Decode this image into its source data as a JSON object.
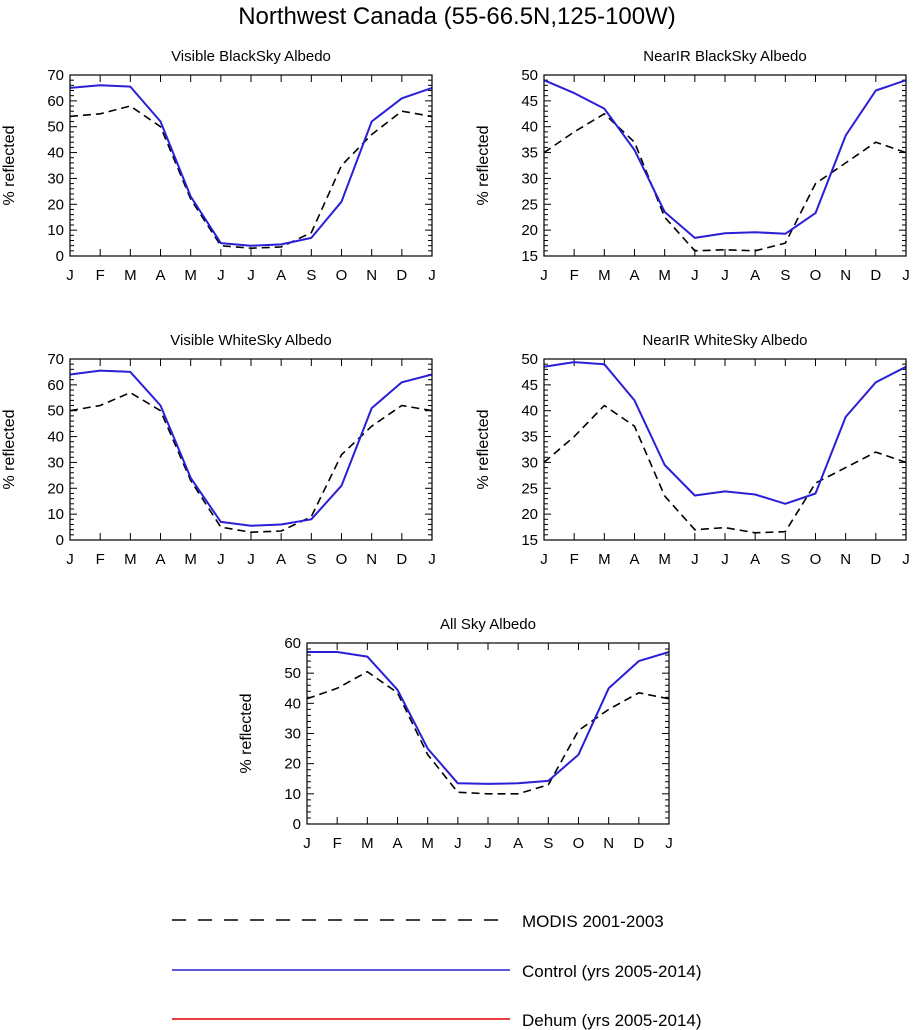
{
  "main_title": "Northwest Canada (55-66.5N,125-100W)",
  "colors": {
    "modis": "#000000",
    "control": "#2a1fd6",
    "dehum": "#e00000"
  },
  "legend": [
    {
      "key": "modis",
      "label": "MODIS 2001-2003",
      "style": "dashed"
    },
    {
      "key": "control",
      "label": "Control (yrs 2005-2014)",
      "style": "solid"
    },
    {
      "key": "dehum",
      "label": "Dehum (yrs 2005-2014)",
      "style": "solid"
    }
  ],
  "chart_data": [
    {
      "type": "line",
      "title": "Visible BlackSky Albedo",
      "ylabel": "% reflected",
      "ylim": [
        0,
        70
      ],
      "yticks": [
        0,
        10,
        20,
        30,
        40,
        50,
        60,
        70
      ],
      "categories": [
        "J",
        "F",
        "M",
        "A",
        "M",
        "J",
        "J",
        "A",
        "S",
        "O",
        "N",
        "D",
        "J"
      ],
      "series": [
        {
          "name": "MODIS 2001-2003",
          "key": "modis",
          "values": [
            54,
            55,
            58,
            50,
            22,
            4,
            3,
            3.5,
            9,
            35,
            47,
            56,
            54
          ]
        },
        {
          "name": "Control (yrs 2005-2014)",
          "key": "control",
          "values": [
            65,
            66,
            65.5,
            52,
            23,
            5,
            4,
            4.5,
            7,
            21,
            52,
            61,
            65
          ]
        }
      ]
    },
    {
      "type": "line",
      "title": "NearIR BlackSky Albedo",
      "ylabel": "% reflected",
      "ylim": [
        15,
        50
      ],
      "yticks": [
        15,
        20,
        25,
        30,
        35,
        40,
        45,
        50
      ],
      "categories": [
        "J",
        "F",
        "M",
        "A",
        "M",
        "J",
        "J",
        "A",
        "S",
        "O",
        "N",
        "D",
        "J"
      ],
      "series": [
        {
          "name": "MODIS 2001-2003",
          "key": "modis",
          "values": [
            35,
            39,
            42.5,
            37,
            22.5,
            16,
            16.2,
            16,
            17.5,
            29,
            33,
            37,
            35
          ]
        },
        {
          "name": "Control (yrs 2005-2014)",
          "key": "control",
          "values": [
            49,
            46.5,
            43.5,
            35.5,
            23.5,
            18.5,
            19.4,
            19.6,
            19.3,
            23.3,
            38.3,
            47,
            49
          ]
        }
      ]
    },
    {
      "type": "line",
      "title": "Visible WhiteSky Albedo",
      "ylabel": "% reflected",
      "ylim": [
        0,
        70
      ],
      "yticks": [
        0,
        10,
        20,
        30,
        40,
        50,
        60,
        70
      ],
      "categories": [
        "J",
        "F",
        "M",
        "A",
        "M",
        "J",
        "J",
        "A",
        "S",
        "O",
        "N",
        "D",
        "J"
      ],
      "series": [
        {
          "name": "MODIS 2001-2003",
          "key": "modis",
          "values": [
            50,
            52,
            57,
            50,
            23,
            5,
            3,
            3.5,
            9,
            33,
            44,
            52,
            50
          ]
        },
        {
          "name": "Control (yrs 2005-2014)",
          "key": "control",
          "values": [
            64,
            65.5,
            65,
            52,
            24,
            7,
            5.5,
            6,
            8,
            21,
            51,
            61,
            64
          ]
        }
      ]
    },
    {
      "type": "line",
      "title": "NearIR WhiteSky Albedo",
      "ylabel": "% reflected",
      "ylim": [
        15,
        50
      ],
      "yticks": [
        15,
        20,
        25,
        30,
        35,
        40,
        45,
        50
      ],
      "categories": [
        "J",
        "F",
        "M",
        "A",
        "M",
        "J",
        "J",
        "A",
        "S",
        "O",
        "N",
        "D",
        "J"
      ],
      "series": [
        {
          "name": "MODIS 2001-2003",
          "key": "modis",
          "values": [
            30,
            35,
            41,
            37,
            23.5,
            17,
            17.4,
            16.4,
            16.6,
            26,
            29,
            32,
            30
          ]
        },
        {
          "name": "Control (yrs 2005-2014)",
          "key": "control",
          "values": [
            48.5,
            49.4,
            49,
            42,
            29.5,
            23.6,
            24.4,
            23.8,
            22,
            24,
            38.8,
            45.5,
            48.5
          ]
        }
      ]
    },
    {
      "type": "line",
      "title": "All Sky Albedo",
      "ylabel": "% reflected",
      "ylim": [
        0,
        60
      ],
      "yticks": [
        0,
        10,
        20,
        30,
        40,
        50,
        60
      ],
      "categories": [
        "J",
        "F",
        "M",
        "A",
        "M",
        "J",
        "J",
        "A",
        "S",
        "O",
        "N",
        "D",
        "J"
      ],
      "series": [
        {
          "name": "MODIS 2001-2003",
          "key": "modis",
          "values": [
            41.5,
            45,
            50.5,
            43.5,
            23,
            10.5,
            10,
            10,
            13,
            31,
            38,
            43.5,
            41.5
          ]
        },
        {
          "name": "Control (yrs 2005-2014)",
          "key": "control",
          "values": [
            57,
            57,
            55.5,
            44.5,
            25,
            13.5,
            13.3,
            13.5,
            14.3,
            23,
            45,
            54,
            57
          ]
        }
      ]
    }
  ]
}
